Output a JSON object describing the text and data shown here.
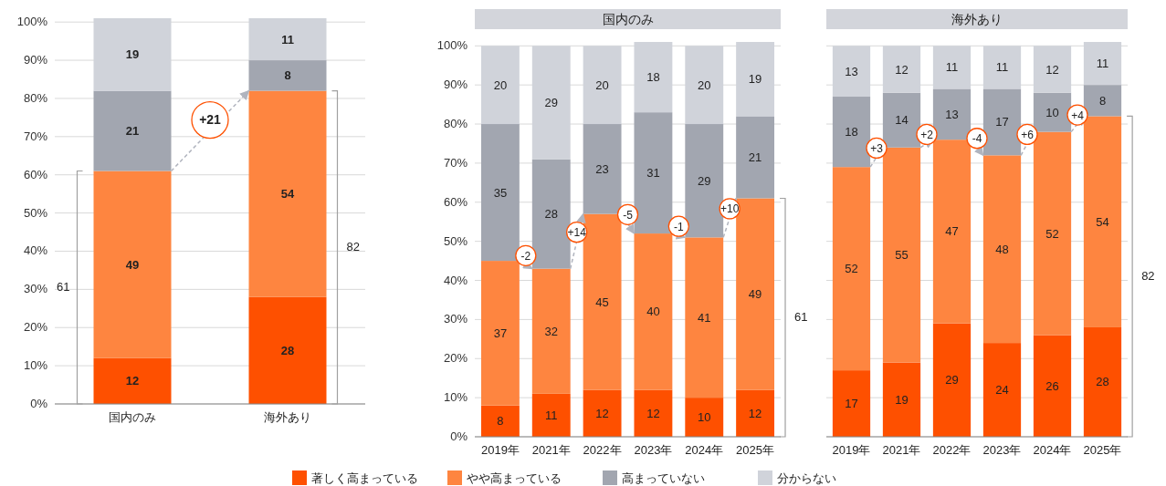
{
  "chart_data": [
    {
      "type": "bar",
      "stacked": true,
      "categories": [
        "国内のみ",
        "海外あり"
      ],
      "series": [
        {
          "color": "#fe5000",
          "values": [
            12,
            28
          ]
        },
        {
          "color": "#fe8540",
          "values": [
            49,
            54
          ]
        },
        {
          "color": "#a2a6b0",
          "values": [
            21,
            8
          ]
        },
        {
          "color": "#d0d3da",
          "values": [
            19,
            11
          ]
        }
      ],
      "ylim": [
        0,
        101
      ],
      "yticks": [
        {
          "value": 0,
          "label": "0%"
        },
        {
          "value": 10,
          "label": "10%"
        },
        {
          "value": 20,
          "label": "20%"
        },
        {
          "value": 30,
          "label": "30%"
        },
        {
          "value": 40,
          "label": "40%"
        },
        {
          "value": 50,
          "label": "50%"
        },
        {
          "value": 60,
          "label": "60%"
        },
        {
          "value": 70,
          "label": "70%"
        },
        {
          "value": 80,
          "label": "80%"
        },
        {
          "value": 90,
          "label": "90%"
        },
        {
          "value": 100,
          "label": "100%"
        }
      ],
      "grid": "y",
      "data_labels": true,
      "annotations": [
        "+21",
        "61",
        "82"
      ]
    },
    {
      "type": "bar",
      "stacked": true,
      "title": "国内のみ",
      "categories": [
        "2019年",
        "2021年",
        "2022年",
        "2023年",
        "2024年",
        "2025年"
      ],
      "series": [
        {
          "name": "著しく高まっている",
          "color": "#fe5000",
          "values": [
            8,
            11,
            12,
            12,
            10,
            12
          ]
        },
        {
          "name": "やや高まっている",
          "color": "#fe8540",
          "values": [
            37,
            32,
            45,
            40,
            41,
            49
          ]
        },
        {
          "name": "高まっていない",
          "color": "#a2a6b0",
          "values": [
            35,
            28,
            23,
            31,
            29,
            21
          ]
        },
        {
          "name": "分からない",
          "color": "#d0d3da",
          "values": [
            20,
            29,
            20,
            18,
            20,
            19
          ]
        }
      ],
      "ylim": [
        0,
        101
      ],
      "yticks": [
        {
          "value": 0,
          "label": "0%"
        },
        {
          "value": 10,
          "label": "10%"
        },
        {
          "value": 20,
          "label": "20%"
        },
        {
          "value": 30,
          "label": "30%"
        },
        {
          "value": 40,
          "label": "40%"
        },
        {
          "value": 50,
          "label": "50%"
        },
        {
          "value": 60,
          "label": "60%"
        },
        {
          "value": 70,
          "label": "70%"
        },
        {
          "value": 80,
          "label": "80%"
        },
        {
          "value": 90,
          "label": "90%"
        },
        {
          "value": 100,
          "label": "100%"
        }
      ],
      "grid": "y",
      "data_labels": true,
      "legend": "bottom",
      "annotations": [
        "-2",
        "+14",
        "-5",
        "-1",
        "+10",
        "61"
      ]
    },
    {
      "type": "bar",
      "stacked": true,
      "title": "海外あり",
      "categories": [
        "2019年",
        "2021年",
        "2022年",
        "2023年",
        "2024年",
        "2025年"
      ],
      "series": [
        {
          "color": "#fe5000",
          "values": [
            17,
            19,
            29,
            24,
            26,
            28
          ]
        },
        {
          "color": "#fe8540",
          "values": [
            52,
            55,
            47,
            48,
            52,
            54
          ]
        },
        {
          "color": "#a2a6b0",
          "values": [
            18,
            14,
            13,
            17,
            10,
            8
          ]
        },
        {
          "color": "#d0d3da",
          "values": [
            13,
            12,
            11,
            11,
            12,
            11
          ]
        }
      ],
      "ylim": [
        0,
        101
      ],
      "yticks": [
        {
          "value": 0,
          "label": null
        },
        {
          "value": 10,
          "label": null
        },
        {
          "value": 20,
          "label": null
        },
        {
          "value": 30,
          "label": null
        },
        {
          "value": 40,
          "label": null
        },
        {
          "value": 50,
          "label": null
        },
        {
          "value": 60,
          "label": null
        },
        {
          "value": 70,
          "label": null
        },
        {
          "value": 80,
          "label": null
        },
        {
          "value": 90,
          "label": null
        },
        {
          "value": 100,
          "label": null
        }
      ],
      "grid": "y",
      "data_labels": true,
      "annotations": [
        "+3",
        "+2",
        "-4",
        "+6",
        "+4",
        "82"
      ]
    }
  ]
}
